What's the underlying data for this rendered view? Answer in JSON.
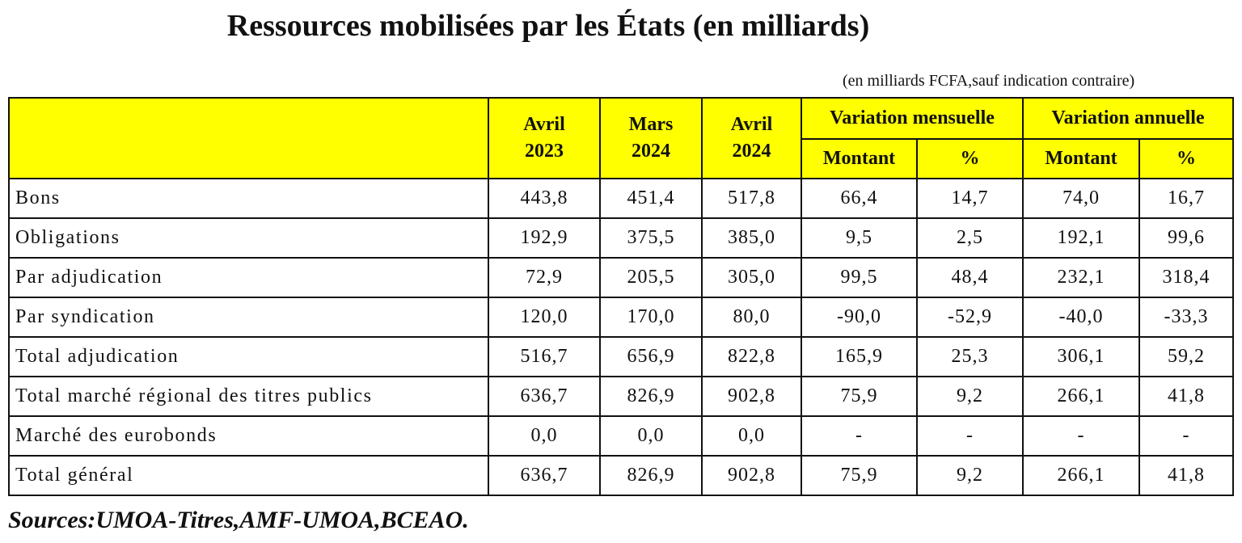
{
  "title": "Ressources mobilisées par les États (en milliards)",
  "unit_note": "(en milliards FCFA,sauf indication contraire)",
  "table": {
    "header_fill_color": "#ffff00",
    "periods": [
      "Avril 2023",
      "Mars 2024",
      "Avril 2024"
    ],
    "groups": [
      "Variation mensuelle",
      "Variation annuelle"
    ],
    "sub_headers": [
      "Montant",
      "%",
      "Montant",
      "%"
    ],
    "rows": [
      {
        "label": "Bons",
        "values": [
          "443,8",
          "451,4",
          "517,8",
          "66,4",
          "14,7",
          "74,0",
          "16,7"
        ]
      },
      {
        "label": "Obligations",
        "values": [
          "192,9",
          "375,5",
          "385,0",
          "9,5",
          "2,5",
          "192,1",
          "99,6"
        ]
      },
      {
        "label": "Par adjudication",
        "values": [
          "72,9",
          "205,5",
          "305,0",
          "99,5",
          "48,4",
          "232,1",
          "318,4"
        ]
      },
      {
        "label": "Par syndication",
        "values": [
          "120,0",
          "170,0",
          "80,0",
          "-90,0",
          "-52,9",
          "-40,0",
          "-33,3"
        ]
      },
      {
        "label": "Total adjudication",
        "values": [
          "516,7",
          "656,9",
          "822,8",
          "165,9",
          "25,3",
          "306,1",
          "59,2"
        ]
      },
      {
        "label": "Total marché régional des titres publics",
        "values": [
          "636,7",
          "826,9",
          "902,8",
          "75,9",
          "9,2",
          "266,1",
          "41,8"
        ]
      },
      {
        "label": "Marché des eurobonds",
        "values": [
          "0,0",
          "0,0",
          "0,0",
          "-",
          "-",
          "-",
          "-"
        ]
      },
      {
        "label": "Total général",
        "values": [
          "636,7",
          "826,9",
          "902,8",
          "75,9",
          "9,2",
          "266,1",
          "41,8"
        ]
      }
    ]
  },
  "sources": "Sources:UMOA-Titres,AMF-UMOA,BCEAO."
}
